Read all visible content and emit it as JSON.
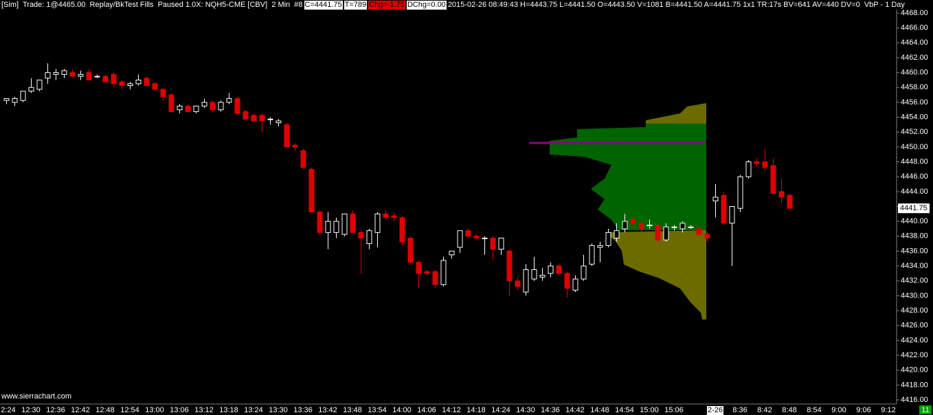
{
  "chart_data": {
    "type": "candlestick",
    "header": {
      "status": "[Sim]  Trade: 1@4465.00  Replay/BkTest Fills  Paused 1.0X: NQH5-CME [CBV]  2 Min  #8",
      "close_box": "C=4441.75",
      "trades_box": "T=789",
      "change_box": "Chg=-1.75",
      "daily_change_box": "DChg=0.00",
      "info": "2015-02-26 08:49:43 H=4443.75 L=4441.50 O=4443.50 V=1081 B=4441.50 A=4441.75 1x1 TR:17s BV=641 AV=440 DV=0  VbP - 1 Day"
    },
    "watermark": "www.sierrachart.com",
    "corner_box": "11",
    "up_color": "#ffffff",
    "down_color": "#e00000",
    "categories": [
      "2:24",
      null,
      null,
      "12:30",
      null,
      null,
      "12:36",
      null,
      null,
      "12:42",
      null,
      null,
      "12:48",
      null,
      null,
      "12:54",
      null,
      null,
      "13:00",
      null,
      null,
      "13:06",
      null,
      null,
      "13:12",
      null,
      null,
      "13:18",
      null,
      null,
      "13:24",
      null,
      null,
      "13:30",
      null,
      null,
      "13:36",
      null,
      null,
      "13:42",
      null,
      null,
      "13:48",
      null,
      null,
      "13:54",
      null,
      null,
      "14:00",
      null,
      null,
      "14:06",
      null,
      null,
      "14:12",
      null,
      null,
      "14:18",
      null,
      null,
      "14:24",
      null,
      null,
      "14:30",
      null,
      null,
      "14:36",
      null,
      null,
      "14:42",
      null,
      null,
      "14:48",
      null,
      null,
      "14:54",
      null,
      null,
      "15:00",
      null,
      null,
      "15:06",
      null,
      null,
      null,
      null,
      "2-26",
      null,
      null,
      "8:36",
      null,
      null,
      "8:42",
      null,
      null,
      "8:48",
      null,
      null,
      "8:54",
      null,
      null,
      "9:00",
      null,
      null,
      "9:06",
      null,
      null,
      "9:12"
    ],
    "open": [
      4456.25,
      4456,
      4456.25,
      4457.5,
      4457.75,
      4459.25,
      4459.75,
      4459.75,
      4460,
      4459.5,
      4460,
      4459.5,
      4459.5,
      4459.75,
      4458.75,
      4458.25,
      4458.5,
      4459.25,
      4458.5,
      4457.75,
      4457,
      4455,
      4455.5,
      4454.75,
      4455.5,
      4456,
      4455,
      4456,
      4456.5,
      4454.75,
      4454.25,
      4454.25,
      4453.75,
      4453.25,
      4453,
      4450.25,
      4449.5,
      4447,
      4441.25,
      4438.5,
      4438.5,
      4438.25,
      4441,
      4438.5,
      4437,
      4438.5,
      4441,
      4440.75,
      4440.5,
      4437.75,
      4434.5,
      4433.25,
      4433.25,
      4431.5,
      4435.5,
      4436.5,
      4438.75,
      4438,
      4437.75,
      4437.75,
      4436.25,
      4436,
      4432,
      4430.5,
      4432.25,
      4432.5,
      4433,
      4434,
      4433,
      4430.75,
      4432.25,
      4434.25,
      4436.5,
      4436.75,
      4437.75,
      4439,
      4440.25,
      4439.75,
      4439.5,
      4439.5,
      4437.5,
      4439.25,
      4439,
      4439.25,
      4439,
      4438.25,
      4442.75,
      4443.5,
      4439.75,
      4441.75,
      4446,
      4448,
      4448,
      4447.5,
      4444,
      4443.5,
      null,
      null,
      null,
      null,
      null,
      null,
      null,
      null,
      null,
      null,
      null,
      null
    ],
    "high": [
      4456.5,
      4456.75,
      4457.5,
      4459.25,
      4459,
      4461.25,
      4460.5,
      4460.5,
      4460.5,
      4460.25,
      4460.5,
      4459.75,
      4459.75,
      4460,
      4459,
      4458.75,
      4459.75,
      4459.5,
      4458.75,
      4458,
      4457.25,
      4455.75,
      4455.75,
      4455.5,
      4456.5,
      4456.25,
      4456.25,
      4457.25,
      4456.75,
      4455,
      4454.5,
      4454.5,
      4454,
      4453.75,
      4453.25,
      4450.5,
      4449.75,
      4447.25,
      4441.5,
      4441.25,
      4440.5,
      4441,
      4441.5,
      4438.75,
      4439,
      4441.25,
      4441.5,
      4441.25,
      4440.75,
      4438,
      4434.75,
      4433.5,
      4433.5,
      4435.25,
      4436,
      4438.75,
      4439,
      4438.25,
      4438,
      4438,
      4437.75,
      4436.25,
      4432.5,
      4434.25,
      4435.25,
      4433.75,
      4434.5,
      4434.25,
      4433.25,
      4432.75,
      4435.5,
      4437,
      4437.25,
      4439,
      4439.75,
      4441,
      4440.75,
      4440.25,
      4440.25,
      4439.75,
      4439.75,
      4439.5,
      4440,
      4439.5,
      4439.25,
      4438.5,
      4445,
      4444,
      4442,
      4446.25,
      4448.25,
      4448.5,
      4449.75,
      4448.5,
      4445.75,
      4443.75,
      null,
      null,
      null,
      null,
      null,
      null,
      null,
      null,
      null,
      null,
      null,
      null
    ],
    "low": [
      4455.75,
      4455.5,
      4456,
      4457.25,
      4457.5,
      4458.5,
      4459,
      4459.25,
      4459.5,
      4459,
      4459,
      4459.25,
      4458.75,
      4458,
      4457.75,
      4457.75,
      4458.25,
      4458.25,
      4457.5,
      4456.25,
      4454.75,
      4454.5,
      4454.75,
      4454.5,
      4455.25,
      4454.75,
      4454.75,
      4455.75,
      4454.25,
      4453.5,
      4453.5,
      4452,
      4453,
      4452.75,
      4450,
      4449.5,
      4447,
      4441.25,
      4438.25,
      4436.25,
      4437.75,
      4438,
      4438.5,
      4433,
      4436.25,
      4436.5,
      4440.25,
      4440,
      4436.75,
      4434.25,
      4431,
      4432.75,
      4431,
      4431.25,
      4435,
      4435.75,
      4437.75,
      4437.75,
      4435.5,
      4434.75,
      4435.5,
      4430,
      4430.75,
      4430,
      4432,
      4432,
      4432.5,
      4432.75,
      4429.75,
      4430.5,
      4432,
      4434,
      4434.5,
      4436.5,
      4437.25,
      4438.5,
      4439.25,
      4438.5,
      4439,
      4437.25,
      4437.25,
      4438.75,
      4438.5,
      4439,
      4438,
      4437.25,
      4440.5,
      4439.5,
      4434,
      4441.25,
      4445.75,
      4447.25,
      4446.75,
      4443.75,
      4442.5,
      4441.75,
      null,
      null,
      null,
      null,
      null,
      null,
      null,
      null,
      null,
      null,
      null,
      null
    ],
    "close": [
      4456.5,
      4456.5,
      4457.5,
      4458,
      4459,
      4460,
      4460,
      4460.25,
      4459.5,
      4459.75,
      4459,
      4459.5,
      4458.75,
      4458.5,
      4458.25,
      4458.5,
      4459,
      4458.25,
      4457.75,
      4456.75,
      4454.75,
      4455.5,
      4454.75,
      4455.5,
      4456,
      4455,
      4456,
      4456.5,
      4454.5,
      4453.75,
      4453.5,
      4453.5,
      4453.75,
      4453.5,
      4450,
      4450,
      4447.25,
      4441.25,
      4438.5,
      4440,
      4440,
      4441,
      4438.5,
      4437.75,
      4438.75,
      4441,
      4440.5,
      4440.5,
      4437.25,
      4434.5,
      4433,
      4433,
      4431.5,
      4434.75,
      4436,
      4438.75,
      4438,
      4437.75,
      4437.75,
      4436.25,
      4437.75,
      4432,
      4431.25,
      4433.5,
      4433.5,
      4432.75,
      4434,
      4433,
      4431,
      4432.25,
      4434,
      4436.75,
      4436.75,
      4438.5,
      4438.75,
      4440,
      4439.75,
      4439,
      4439.5,
      4437.5,
      4439.25,
      4439.25,
      4439.75,
      4439.25,
      4438.25,
      4437.75,
      4443.25,
      4439.75,
      4442,
      4446,
      4448,
      4447.75,
      4447.25,
      4443.75,
      4443.25,
      4441.75,
      null,
      null,
      null,
      null,
      null,
      null,
      null,
      null,
      null,
      null,
      null,
      null
    ],
    "last_price": {
      "value": 4441.75,
      "label": "4441.75"
    },
    "ylim": [
      4416,
      4468
    ],
    "yticks": [
      {
        "value": 4416,
        "label": "4416.00"
      },
      {
        "value": 4418,
        "label": "4418.00"
      },
      {
        "value": 4420,
        "label": "4420.00"
      },
      {
        "value": 4422,
        "label": "4422.00"
      },
      {
        "value": 4424,
        "label": "4424.00"
      },
      {
        "value": 4426,
        "label": "4426.00"
      },
      {
        "value": 4428,
        "label": "4428.00"
      },
      {
        "value": 4430,
        "label": "4430.00"
      },
      {
        "value": 4432,
        "label": "4432.00"
      },
      {
        "value": 4434,
        "label": "4434.00"
      },
      {
        "value": 4436,
        "label": "4436.00"
      },
      {
        "value": 4438,
        "label": "4438.00"
      },
      {
        "value": 4440,
        "label": "4440.00"
      },
      {
        "value": 4442,
        "label": "4442.00"
      },
      {
        "value": 4444,
        "label": "4444.00"
      },
      {
        "value": 4446,
        "label": "4446.00"
      },
      {
        "value": 4448,
        "label": "4448.00"
      },
      {
        "value": 4450,
        "label": "4450.00"
      },
      {
        "value": 4452,
        "label": "4452.00"
      },
      {
        "value": 4454,
        "label": "4454.00"
      },
      {
        "value": 4456,
        "label": "4456.00"
      },
      {
        "value": 4458,
        "label": "4458.00"
      },
      {
        "value": 4460,
        "label": "4460.00"
      },
      {
        "value": 4462,
        "label": "4462.00"
      },
      {
        "value": 4464,
        "label": "4464.00"
      },
      {
        "value": 4466,
        "label": "4466.00"
      },
      {
        "value": 4468,
        "label": "4468.00"
      }
    ]
  }
}
